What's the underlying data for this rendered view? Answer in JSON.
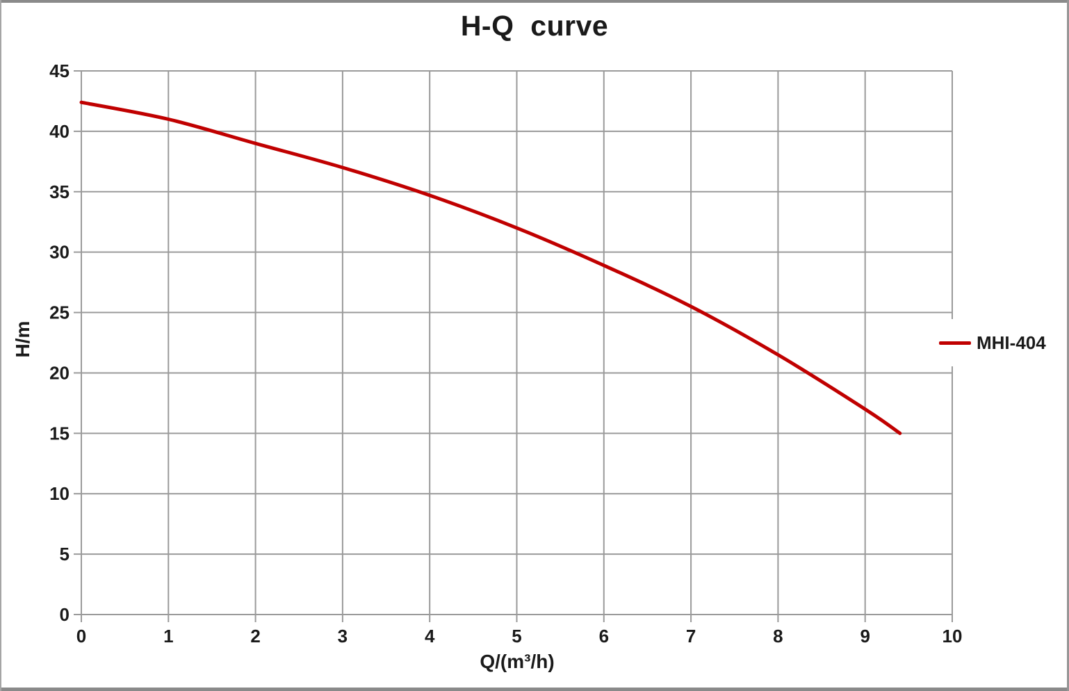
{
  "frame": {
    "border_color": "#8a8a8a",
    "background": "#ffffff"
  },
  "chart_data": {
    "type": "line",
    "title": "H-Q  curve",
    "xlabel": "Q/(m³/h)",
    "ylabel": "H/m",
    "xlim": [
      0,
      10
    ],
    "ylim": [
      0,
      45
    ],
    "x_ticks": [
      0,
      1,
      2,
      3,
      4,
      5,
      6,
      7,
      8,
      9,
      10
    ],
    "y_ticks": [
      0,
      5,
      10,
      15,
      20,
      25,
      30,
      35,
      40,
      45
    ],
    "grid": true,
    "legend_position": "right-outside",
    "series": [
      {
        "name": "MHI-404",
        "color": "#C00000",
        "x": [
          0,
          1,
          2,
          3,
          4,
          5,
          6,
          7,
          8,
          9,
          9.4
        ],
        "y": [
          42.4,
          41.0,
          39.0,
          37.0,
          34.7,
          32.0,
          28.9,
          25.5,
          21.5,
          17.0,
          15.0
        ]
      }
    ],
    "colors": {
      "grid": "#9a9a9a",
      "text": "#1a1a1a"
    }
  }
}
